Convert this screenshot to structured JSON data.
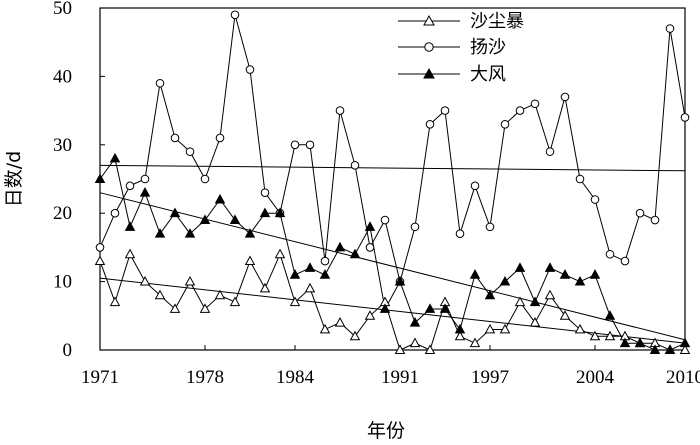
{
  "chart_data": {
    "type": "line",
    "xlabel": "年份",
    "ylabel": "日数/d",
    "xlim": [
      1971,
      2010
    ],
    "ylim": [
      0,
      50
    ],
    "x_ticks": [
      1971,
      1978,
      1984,
      1991,
      1997,
      2004,
      2010
    ],
    "y_ticks": [
      0,
      10,
      20,
      30,
      40,
      50
    ],
    "legend_position": "top-right",
    "x": [
      1971,
      1972,
      1973,
      1974,
      1975,
      1976,
      1977,
      1978,
      1979,
      1980,
      1981,
      1982,
      1983,
      1984,
      1985,
      1986,
      1987,
      1988,
      1989,
      1990,
      1991,
      1992,
      1993,
      1994,
      1995,
      1996,
      1997,
      1998,
      1999,
      2000,
      2001,
      2002,
      2003,
      2004,
      2005,
      2006,
      2007,
      2008,
      2009,
      2010
    ],
    "series": [
      {
        "name": "沙尘暴",
        "marker": "triangle-open",
        "values": [
          13,
          7,
          14,
          10,
          8,
          6,
          10,
          6,
          8,
          7,
          13,
          9,
          14,
          7,
          9,
          3,
          4,
          2,
          5,
          7,
          0,
          1,
          0,
          7,
          2,
          1,
          3,
          3,
          7,
          4,
          8,
          5,
          3,
          2,
          2,
          2,
          1,
          1,
          0,
          0
        ],
        "trend": [
          10.5,
          1.0
        ]
      },
      {
        "name": "扬沙",
        "marker": "circle-open",
        "values": [
          15,
          20,
          24,
          25,
          39,
          31,
          29,
          25,
          31,
          49,
          41,
          23,
          20,
          30,
          30,
          13,
          35,
          27,
          15,
          19,
          10,
          18,
          33,
          35,
          17,
          24,
          18,
          33,
          35,
          36,
          29,
          37,
          25,
          22,
          14,
          13,
          20,
          19,
          47,
          34
        ],
        "trend": [
          27.0,
          26.2
        ]
      },
      {
        "name": "大风",
        "marker": "triangle-filled",
        "values": [
          25,
          28,
          18,
          23,
          17,
          20,
          17,
          19,
          22,
          19,
          17,
          20,
          20,
          11,
          12,
          11,
          15,
          14,
          18,
          6,
          10,
          4,
          6,
          6,
          3,
          11,
          8,
          10,
          12,
          7,
          12,
          11,
          10,
          11,
          5,
          1,
          1,
          0,
          0,
          1
        ],
        "trend": [
          23.0,
          1.5
        ]
      }
    ]
  }
}
